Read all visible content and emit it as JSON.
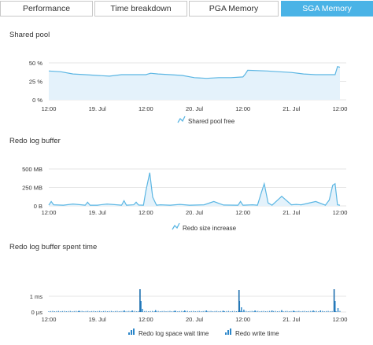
{
  "tabs": [
    {
      "label": "Performance",
      "active": false
    },
    {
      "label": "Time breakdown",
      "active": false
    },
    {
      "label": "PGA Memory",
      "active": false
    },
    {
      "label": "SGA Memory",
      "active": true
    }
  ],
  "colors": {
    "accent": "#4ab3e6",
    "line": "#5bb6e3",
    "area": "#e4f2fb",
    "bar": "#2b86c9",
    "grid": "#e6e6e6",
    "text": "#333333"
  },
  "chart_data": [
    {
      "type": "area",
      "title": "Shared pool",
      "x_tick_labels": [
        "12:00",
        "19. Jul",
        "12:00",
        "20. Jul",
        "12:00",
        "21. Jul",
        "12:00"
      ],
      "y_tick_labels": [
        "50 %",
        "25 %",
        "0 %"
      ],
      "ylim": [
        0,
        50
      ],
      "y_unit": "%",
      "legend": "bottom",
      "series": [
        {
          "name": "Shared pool free",
          "x": [
            0,
            0.25,
            0.5,
            0.75,
            1,
            1.25,
            1.5,
            1.75,
            2,
            2.1,
            2.25,
            2.5,
            2.75,
            3,
            3.25,
            3.5,
            3.75,
            4,
            4.05,
            4.1,
            4.5,
            4.75,
            5,
            5.25,
            5.5,
            5.75,
            5.9,
            5.95,
            6
          ],
          "values": [
            39,
            38,
            35,
            34,
            33,
            32,
            34,
            34,
            34,
            36,
            35,
            34,
            33,
            30,
            29,
            30,
            30,
            31,
            35,
            40,
            39,
            38,
            37,
            35,
            34,
            34,
            34,
            45,
            44
          ]
        }
      ]
    },
    {
      "type": "area",
      "title": "Redo log buffer",
      "x_tick_labels": [
        "12:00",
        "19. Jul",
        "12:00",
        "20. Jul",
        "12:00",
        "21. Jul",
        "12:00"
      ],
      "y_tick_labels": [
        "500 MB",
        "250 MB",
        "0 B"
      ],
      "ylim": [
        0,
        500
      ],
      "y_unit": "MB",
      "legend": "bottom",
      "series": [
        {
          "name": "Redo size increase",
          "x": [
            0,
            0.05,
            0.1,
            0.3,
            0.5,
            0.75,
            0.8,
            0.85,
            1,
            1.2,
            1.5,
            1.55,
            1.6,
            1.75,
            1.8,
            1.85,
            1.95,
            2.0,
            2.08,
            2.14,
            2.22,
            2.3,
            2.5,
            2.7,
            2.9,
            3.2,
            3.4,
            3.6,
            3.9,
            3.95,
            4.0,
            4.2,
            4.3,
            4.38,
            4.44,
            4.52,
            4.6,
            4.8,
            5.0,
            5.1,
            5.2,
            5.5,
            5.7,
            5.78,
            5.85,
            5.9,
            5.95,
            6
          ],
          "values": [
            10,
            60,
            15,
            10,
            25,
            10,
            50,
            10,
            10,
            25,
            10,
            70,
            10,
            15,
            50,
            12,
            10,
            200,
            450,
            120,
            10,
            15,
            10,
            20,
            10,
            15,
            60,
            12,
            10,
            60,
            10,
            15,
            10,
            180,
            300,
            40,
            10,
            130,
            15,
            20,
            15,
            60,
            10,
            80,
            280,
            300,
            15,
            10
          ]
        }
      ]
    },
    {
      "type": "bar",
      "title": "Redo log buffer spent time",
      "x_tick_labels": [
        "12:00",
        "19. Jul",
        "12:00",
        "20. Jul",
        "12:00",
        "21. Jul",
        "12:00"
      ],
      "y_tick_labels": [
        "1 ms",
        "0 µs"
      ],
      "ylim": [
        0,
        1.45
      ],
      "y_unit": "ms",
      "legend": "bottom",
      "series": [
        {
          "name": "Redo log space wait time",
          "x": [
            0.62,
            1.56,
            1.72,
            1.9,
            1.93,
            2.2,
            2.6,
            2.8,
            3.25,
            3.6,
            3.93,
            3.97,
            4.02,
            4.25,
            4.6,
            4.8,
            5.05,
            5.45,
            5.6,
            5.9,
            5.96
          ],
          "values": [
            0.08,
            0.1,
            0.1,
            0.7,
            0.2,
            0.12,
            0.08,
            0.1,
            0.1,
            0.08,
            0.7,
            0.3,
            0.15,
            0.1,
            0.1,
            0.12,
            0.08,
            0.1,
            0.1,
            0.7,
            0.25
          ]
        },
        {
          "name": "Redo write time",
          "x": [
            1.88,
            3.92,
            5.88
          ],
          "values": [
            1.45,
            1.4,
            1.45
          ]
        }
      ]
    }
  ]
}
